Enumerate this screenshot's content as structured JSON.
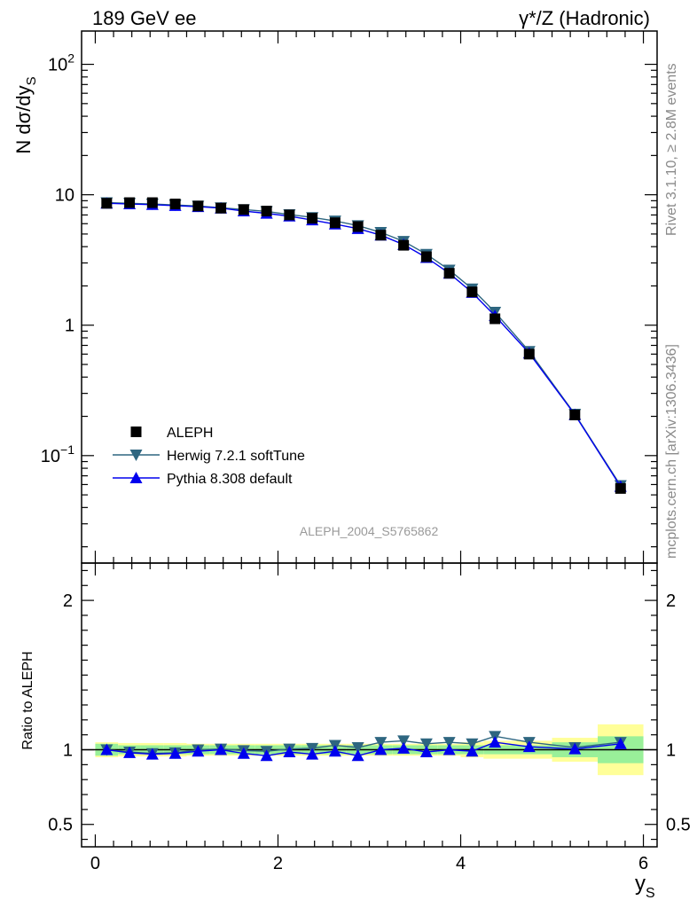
{
  "header": {
    "left_title": "189 GeV ee",
    "right_title": "γ*/Z (Hadronic)"
  },
  "side_text": {
    "rivet": "Rivet 3.1.10, ≥ 2.8M events",
    "mcplots": "mcplots.cern.ch [arXiv:1306.3436]"
  },
  "watermark": "ALEPH_2004_S5765862",
  "chart_data": {
    "type": "line",
    "x_axis": {
      "label": "y",
      "label_subscript": "S",
      "range": [
        -0.15,
        6.15
      ],
      "ticks": [
        "0",
        "2",
        "4",
        "6"
      ]
    },
    "main_panel": {
      "y_axis": {
        "label": "N dσ/dy",
        "label_subscript": "S",
        "scale": "log",
        "range": [
          0.015,
          180
        ]
      },
      "y_tick_labels": [
        "10−1",
        "1",
        "10",
        "102"
      ],
      "x_bin_edges": [
        0,
        0.25,
        0.5,
        0.75,
        1.0,
        1.25,
        1.5,
        1.75,
        2.0,
        2.25,
        2.5,
        2.75,
        3.0,
        3.25,
        3.5,
        3.75,
        4.0,
        4.25,
        4.5,
        5.0,
        5.5,
        6.0
      ],
      "x": [
        0.125,
        0.375,
        0.625,
        0.875,
        1.125,
        1.375,
        1.625,
        1.875,
        2.125,
        2.375,
        2.625,
        2.875,
        3.125,
        3.375,
        3.625,
        3.875,
        4.125,
        4.375,
        4.75,
        5.25,
        5.75
      ],
      "series": [
        {
          "name": "ALEPH",
          "marker": "square",
          "color": "#000000",
          "values": [
            8.6,
            8.7,
            8.7,
            8.5,
            8.2,
            7.9,
            7.7,
            7.5,
            7.0,
            6.6,
            6.1,
            5.7,
            4.9,
            4.1,
            3.35,
            2.5,
            1.8,
            1.12,
            0.6,
            0.205,
            0.056
          ]
        },
        {
          "name": "Herwig 7.2.1 softTune",
          "marker": "triangle-down",
          "color": "#2e6680",
          "values": [
            8.7,
            8.6,
            8.5,
            8.35,
            8.2,
            7.95,
            7.7,
            7.45,
            7.05,
            6.7,
            6.3,
            5.8,
            5.15,
            4.4,
            3.5,
            2.65,
            1.9,
            1.26,
            0.63,
            0.208,
            0.059
          ]
        },
        {
          "name": "Pythia 8.308 default",
          "marker": "triangle-up",
          "color": "#0000ee",
          "values": [
            8.6,
            8.5,
            8.4,
            8.25,
            8.1,
            7.9,
            7.5,
            7.2,
            6.85,
            6.4,
            5.95,
            5.5,
            4.9,
            4.15,
            3.3,
            2.5,
            1.78,
            1.18,
            0.61,
            0.206,
            0.058
          ]
        }
      ]
    },
    "ratio_panel": {
      "y_axis": {
        "label": "Ratio to ALEPH",
        "range": [
          0.35,
          2.25
        ]
      },
      "y_tick_labels": [
        "0.5",
        "1",
        "2"
      ],
      "bands": {
        "green": [
          0.04,
          0.03,
          0.03,
          0.03,
          0.03,
          0.03,
          0.03,
          0.03,
          0.03,
          0.03,
          0.03,
          0.03,
          0.03,
          0.03,
          0.03,
          0.03,
          0.03,
          0.03,
          0.03,
          0.05,
          0.09
        ],
        "yellow": [
          0.05,
          0.045,
          0.045,
          0.045,
          0.04,
          0.04,
          0.04,
          0.04,
          0.04,
          0.04,
          0.04,
          0.04,
          0.04,
          0.04,
          0.04,
          0.04,
          0.05,
          0.06,
          0.06,
          0.08,
          0.17
        ]
      },
      "series": [
        {
          "name": "Herwig 7.2.1 softTune",
          "values": [
            1.0,
            0.985,
            0.975,
            0.98,
            1.0,
            1.005,
            0.995,
            0.99,
            1.005,
            1.01,
            1.03,
            1.015,
            1.05,
            1.06,
            1.04,
            1.05,
            1.04,
            1.09,
            1.05,
            1.015,
            1.05
          ]
        },
        {
          "name": "Pythia 8.308 default",
          "values": [
            1.0,
            0.98,
            0.97,
            0.975,
            0.99,
            1.0,
            0.975,
            0.96,
            0.985,
            0.97,
            0.99,
            0.96,
            1.0,
            1.01,
            0.985,
            1.0,
            0.99,
            1.05,
            1.02,
            1.005,
            1.04
          ]
        }
      ]
    },
    "legend_placement": "middle-left"
  }
}
